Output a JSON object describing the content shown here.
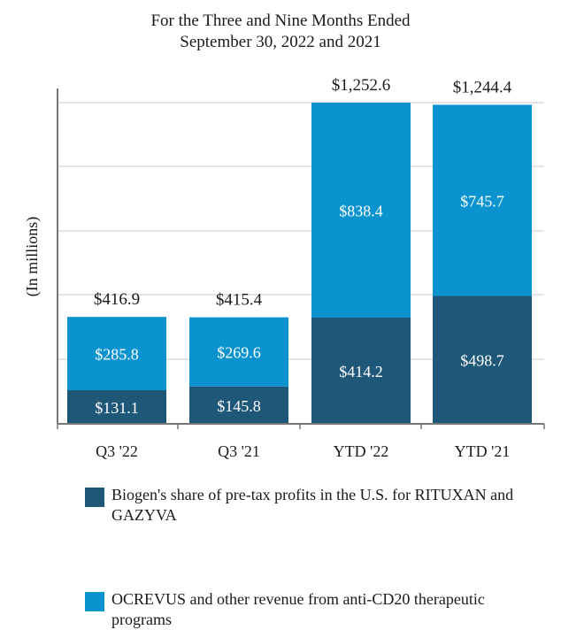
{
  "chart_data": {
    "type": "bar",
    "stacked": true,
    "title_lines": [
      "For the Three and Nine Months Ended",
      "September 30, 2022 and 2021"
    ],
    "ylabel": "(In millions)",
    "ylim": [
      0,
      1252.6
    ],
    "grid": true,
    "categories": [
      "Q3 '22",
      "Q3 '21",
      "YTD '22",
      "YTD '21"
    ],
    "series": [
      {
        "name": "Biogen's share of pre-tax profits in the U.S. for RITUXAN and GAZYVA",
        "color": "#1f5778",
        "values": [
          131.1,
          145.8,
          414.2,
          498.7
        ],
        "labels": [
          "$131.1",
          "$145.8",
          "$414.2",
          "$498.7"
        ]
      },
      {
        "name": "OCREVUS and other revenue from anti-CD20 therapeutic programs",
        "color": "#0b93d0",
        "values": [
          285.8,
          269.6,
          838.4,
          745.7
        ],
        "labels": [
          "$285.8",
          "$269.6",
          "$838.4",
          "$745.7"
        ]
      }
    ],
    "totals": [
      416.9,
      415.4,
      1252.6,
      1244.4
    ],
    "total_labels": [
      "$416.9",
      "$415.4",
      "$1,252.6",
      "$1,244.4"
    ],
    "legend_position": "bottom"
  }
}
